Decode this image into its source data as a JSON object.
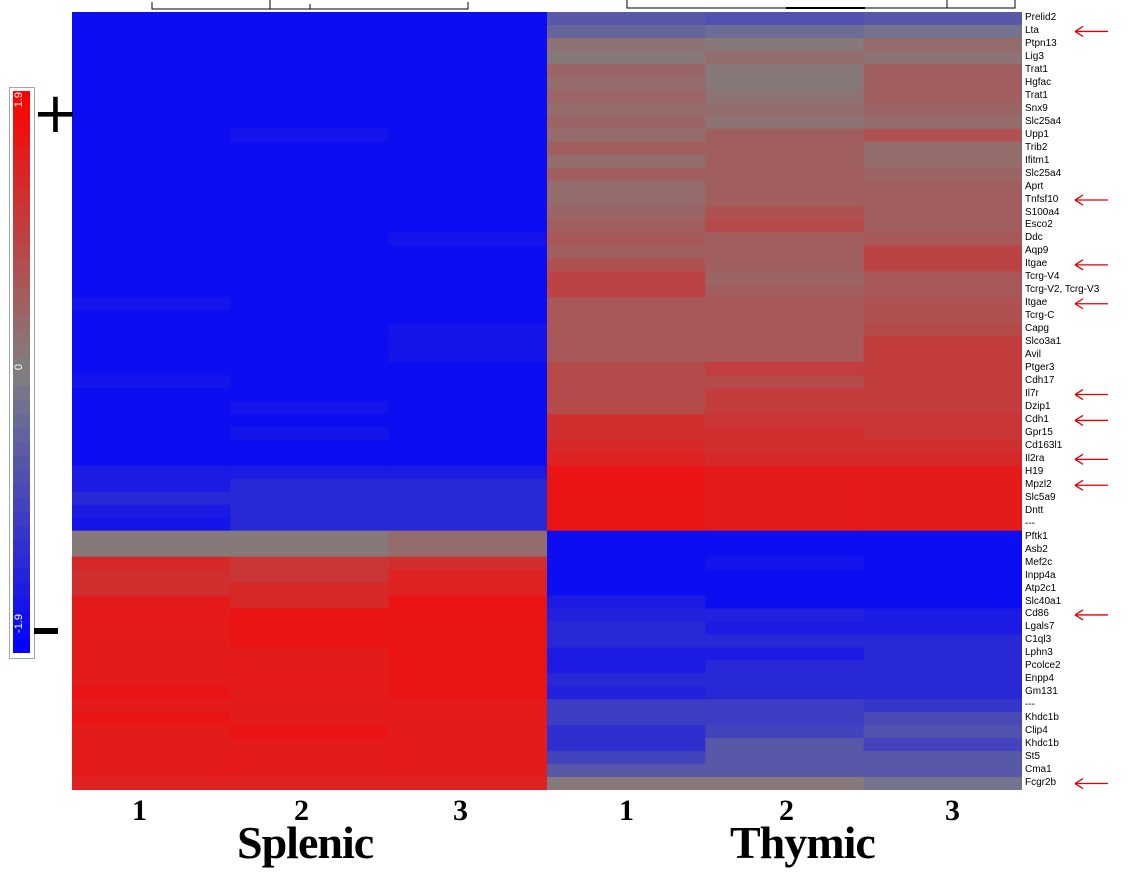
{
  "chart_data": {
    "type": "heatmap",
    "title": "",
    "groups": [
      "Splenic",
      "Thymic"
    ],
    "columns": [
      "1",
      "2",
      "3",
      "1",
      "2",
      "3"
    ],
    "colorbar": {
      "min": -1.9,
      "max": 1.9,
      "mid": 0,
      "min_label": "-1.9",
      "mid_label": "0",
      "max_label": "1.9",
      "low_color": "#0000ff",
      "mid_color": "#808080",
      "high_color": "#ff0000"
    },
    "sign_labels": {
      "plus": "+",
      "minus": ""
    },
    "genes": [
      "Prelid2",
      "Lta",
      "Ptpn13",
      "Lig3",
      "Trat1",
      "Hgfac",
      "Trat1",
      "Snx9",
      "Slc25a4",
      "Upp1",
      "Trib2",
      "Ifitm1",
      "Slc25a4",
      "Aprt",
      "Tnfsf10",
      "S100a4",
      "Esco2",
      "Ddc",
      "Aqp9",
      "Itgae",
      "Tcrg-V4",
      "Tcrg-V2, Tcrg-V3",
      "Itgae",
      "Tcrg-C",
      "Capg",
      "Slco3a1",
      "Avil",
      "Ptger3",
      "Cdh17",
      "Il7r",
      "Dzip1",
      "Cdh1",
      "Gpr15",
      "Cd163l1",
      "Il2ra",
      "H19",
      "Mpzl2",
      "Slc5a9",
      "Dntt",
      "---",
      "Pftk1",
      "Asb2",
      "Mef2c",
      "Inpp4a",
      "Atp2c1",
      "Slc40a1",
      "Cd86",
      "Lgals7",
      "C1ql3",
      "Lphn3",
      "Pcolce2",
      "Enpp4",
      "Gm131",
      "---",
      "Khdc1b",
      "Clip4",
      "Khdc1b",
      "St5",
      "Cma1",
      "Fcgr2b"
    ],
    "highlighted_genes": [
      "Lta",
      "Tnfsf10",
      "Itgae",
      "Itgae",
      "Il7r",
      "Cdh1",
      "Il2ra",
      "Mpzl2",
      "Cd86",
      "Fcgr2b"
    ],
    "highlight_color": "#e00000",
    "values": [
      [
        -1.7,
        -1.7,
        -1.7,
        -0.6,
        -0.7,
        -0.6
      ],
      [
        -1.7,
        -1.7,
        -1.7,
        -0.4,
        -0.3,
        -0.2
      ],
      [
        -1.7,
        -1.7,
        -1.7,
        0.2,
        0.1,
        0.3
      ],
      [
        -1.7,
        -1.7,
        -1.7,
        0.1,
        0.3,
        0.2
      ],
      [
        -1.7,
        -1.7,
        -1.7,
        0.4,
        0.1,
        0.5
      ],
      [
        -1.7,
        -1.7,
        -1.7,
        0.3,
        0.1,
        0.5
      ],
      [
        -1.7,
        -1.7,
        -1.7,
        0.4,
        0.2,
        0.5
      ],
      [
        -1.7,
        -1.7,
        -1.7,
        0.3,
        0.3,
        0.4
      ],
      [
        -1.7,
        -1.7,
        -1.7,
        0.4,
        0.2,
        0.3
      ],
      [
        -1.7,
        -1.6,
        -1.7,
        0.3,
        0.5,
        0.7
      ],
      [
        -1.7,
        -1.7,
        -1.7,
        0.5,
        0.5,
        0.3
      ],
      [
        -1.7,
        -1.7,
        -1.7,
        0.3,
        0.5,
        0.3
      ],
      [
        -1.7,
        -1.7,
        -1.7,
        0.5,
        0.5,
        0.4
      ],
      [
        -1.7,
        -1.7,
        -1.7,
        0.3,
        0.5,
        0.5
      ],
      [
        -1.7,
        -1.7,
        -1.7,
        0.3,
        0.5,
        0.5
      ],
      [
        -1.7,
        -1.7,
        -1.7,
        0.4,
        0.7,
        0.5
      ],
      [
        -1.7,
        -1.7,
        -1.7,
        0.5,
        0.8,
        0.5
      ],
      [
        -1.7,
        -1.7,
        -1.6,
        0.6,
        0.5,
        0.6
      ],
      [
        -1.7,
        -1.7,
        -1.7,
        0.5,
        0.5,
        0.9
      ],
      [
        -1.7,
        -1.7,
        -1.7,
        0.7,
        0.5,
        0.9
      ],
      [
        -1.7,
        -1.7,
        -1.7,
        0.9,
        0.4,
        0.6
      ],
      [
        -1.7,
        -1.7,
        -1.7,
        0.9,
        0.5,
        0.6
      ],
      [
        -1.6,
        -1.7,
        -1.7,
        0.6,
        0.6,
        0.7
      ],
      [
        -1.7,
        -1.7,
        -1.7,
        0.6,
        0.6,
        0.7
      ],
      [
        -1.7,
        -1.7,
        -1.6,
        0.6,
        0.6,
        0.8
      ],
      [
        -1.7,
        -1.7,
        -1.6,
        0.6,
        0.6,
        1.0
      ],
      [
        -1.7,
        -1.7,
        -1.6,
        0.6,
        0.6,
        1.0
      ],
      [
        -1.7,
        -1.7,
        -1.7,
        0.8,
        1.0,
        1.0
      ],
      [
        -1.6,
        -1.7,
        -1.7,
        0.8,
        0.8,
        1.0
      ],
      [
        -1.7,
        -1.7,
        -1.7,
        0.8,
        1.0,
        1.0
      ],
      [
        -1.7,
        -1.6,
        -1.7,
        0.8,
        1.0,
        1.0
      ],
      [
        -1.7,
        -1.7,
        -1.7,
        1.2,
        1.1,
        1.1
      ],
      [
        -1.7,
        -1.6,
        -1.7,
        1.2,
        1.2,
        1.1
      ],
      [
        -1.7,
        -1.7,
        -1.7,
        1.3,
        1.2,
        1.2
      ],
      [
        -1.7,
        -1.7,
        -1.7,
        1.4,
        1.3,
        1.3
      ],
      [
        -1.5,
        -1.5,
        -1.5,
        1.6,
        1.5,
        1.5
      ],
      [
        -1.5,
        -1.3,
        -1.3,
        1.6,
        1.5,
        1.5
      ],
      [
        -1.3,
        -1.3,
        -1.3,
        1.6,
        1.5,
        1.5
      ],
      [
        -1.5,
        -1.3,
        -1.3,
        1.6,
        1.5,
        1.5
      ],
      [
        -1.6,
        -1.3,
        -1.3,
        1.6,
        1.5,
        1.5
      ],
      [
        0.1,
        0.1,
        0.3,
        -1.7,
        -1.7,
        -1.7
      ],
      [
        0.1,
        0.1,
        0.3,
        -1.7,
        -1.7,
        -1.7
      ],
      [
        1.3,
        1.1,
        1.2,
        -1.7,
        -1.6,
        -1.7
      ],
      [
        1.2,
        1.1,
        1.4,
        -1.7,
        -1.7,
        -1.7
      ],
      [
        1.2,
        1.3,
        1.4,
        -1.7,
        -1.7,
        -1.7
      ],
      [
        1.5,
        1.3,
        1.6,
        -1.5,
        -1.7,
        -1.7
      ],
      [
        1.5,
        1.6,
        1.6,
        -1.4,
        -1.4,
        -1.5
      ],
      [
        1.5,
        1.6,
        1.6,
        -1.3,
        -1.5,
        -1.5
      ],
      [
        1.5,
        1.6,
        1.6,
        -1.3,
        -1.3,
        -1.3
      ],
      [
        1.5,
        1.5,
        1.6,
        -1.5,
        -1.5,
        -1.3
      ],
      [
        1.5,
        1.5,
        1.6,
        -1.5,
        -1.3,
        -1.3
      ],
      [
        1.5,
        1.5,
        1.6,
        -1.3,
        -1.3,
        -1.3
      ],
      [
        1.6,
        1.5,
        1.6,
        -1.4,
        -1.3,
        -1.3
      ],
      [
        1.5,
        1.5,
        1.5,
        -1.0,
        -1.0,
        -1.1
      ],
      [
        1.6,
        1.5,
        1.5,
        -1.0,
        -1.0,
        -0.8
      ],
      [
        1.5,
        1.6,
        1.5,
        -1.2,
        -0.9,
        -0.7
      ],
      [
        1.5,
        1.5,
        1.5,
        -1.2,
        -0.6,
        -0.9
      ],
      [
        1.5,
        1.5,
        1.5,
        -0.9,
        -0.6,
        -0.6
      ],
      [
        1.5,
        1.5,
        1.5,
        -0.6,
        -0.6,
        -0.6
      ],
      [
        1.4,
        1.4,
        1.4,
        0.1,
        0.1,
        -0.2
      ]
    ]
  }
}
